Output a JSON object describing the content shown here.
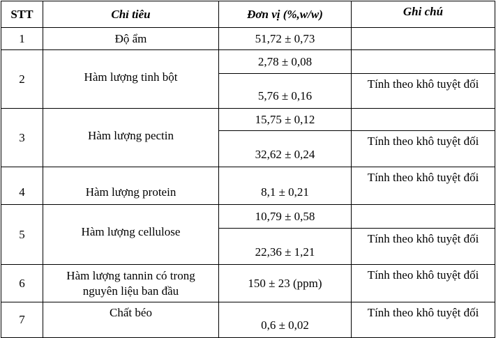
{
  "headers": {
    "stt": "STT",
    "chi_tieu": "Chỉ tiêu",
    "don_vi": "Đơn vị (%,w/w)",
    "ghi_chu": "Ghi chú"
  },
  "rows": [
    {
      "stt": "1",
      "name": "Độ ẩm",
      "values": [
        "51,72 ± 0,73"
      ],
      "notes": [
        ""
      ]
    },
    {
      "stt": "2",
      "name": "Hàm lượng tinh bột",
      "values": [
        "2,78 ± 0,08",
        "5,76 ± 0,16"
      ],
      "notes": [
        "",
        "Tính theo khô tuyệt đối"
      ]
    },
    {
      "stt": "3",
      "name": "Hàm lượng pectin",
      "values": [
        "15,75 ± 0,12",
        "32,62 ± 0,24"
      ],
      "notes": [
        "",
        "Tính theo khô tuyệt đối"
      ]
    },
    {
      "stt": "4",
      "name": "Hàm lượng protein",
      "values": [
        "8,1 ± 0,21"
      ],
      "notes": [
        "Tính theo khô tuyệt đối"
      ]
    },
    {
      "stt": "5",
      "name": "Hàm lượng cellulose",
      "values": [
        "10,79 ± 0,58",
        "22,36 ± 1,21"
      ],
      "notes": [
        "",
        "Tính theo khô tuyệt đối"
      ]
    },
    {
      "stt": "6",
      "name_line1": "Hàm lượng tannin có trong",
      "name_line2": "nguyên liệu ban đầu",
      "values": [
        "150 ± 23 (ppm)"
      ],
      "notes": [
        "Tính theo khô tuyệt đối"
      ]
    },
    {
      "stt": "7",
      "name": "Chất béo",
      "values": [
        "0,6 ± 0,02"
      ],
      "notes": [
        "Tính theo khô tuyệt đối"
      ]
    }
  ]
}
